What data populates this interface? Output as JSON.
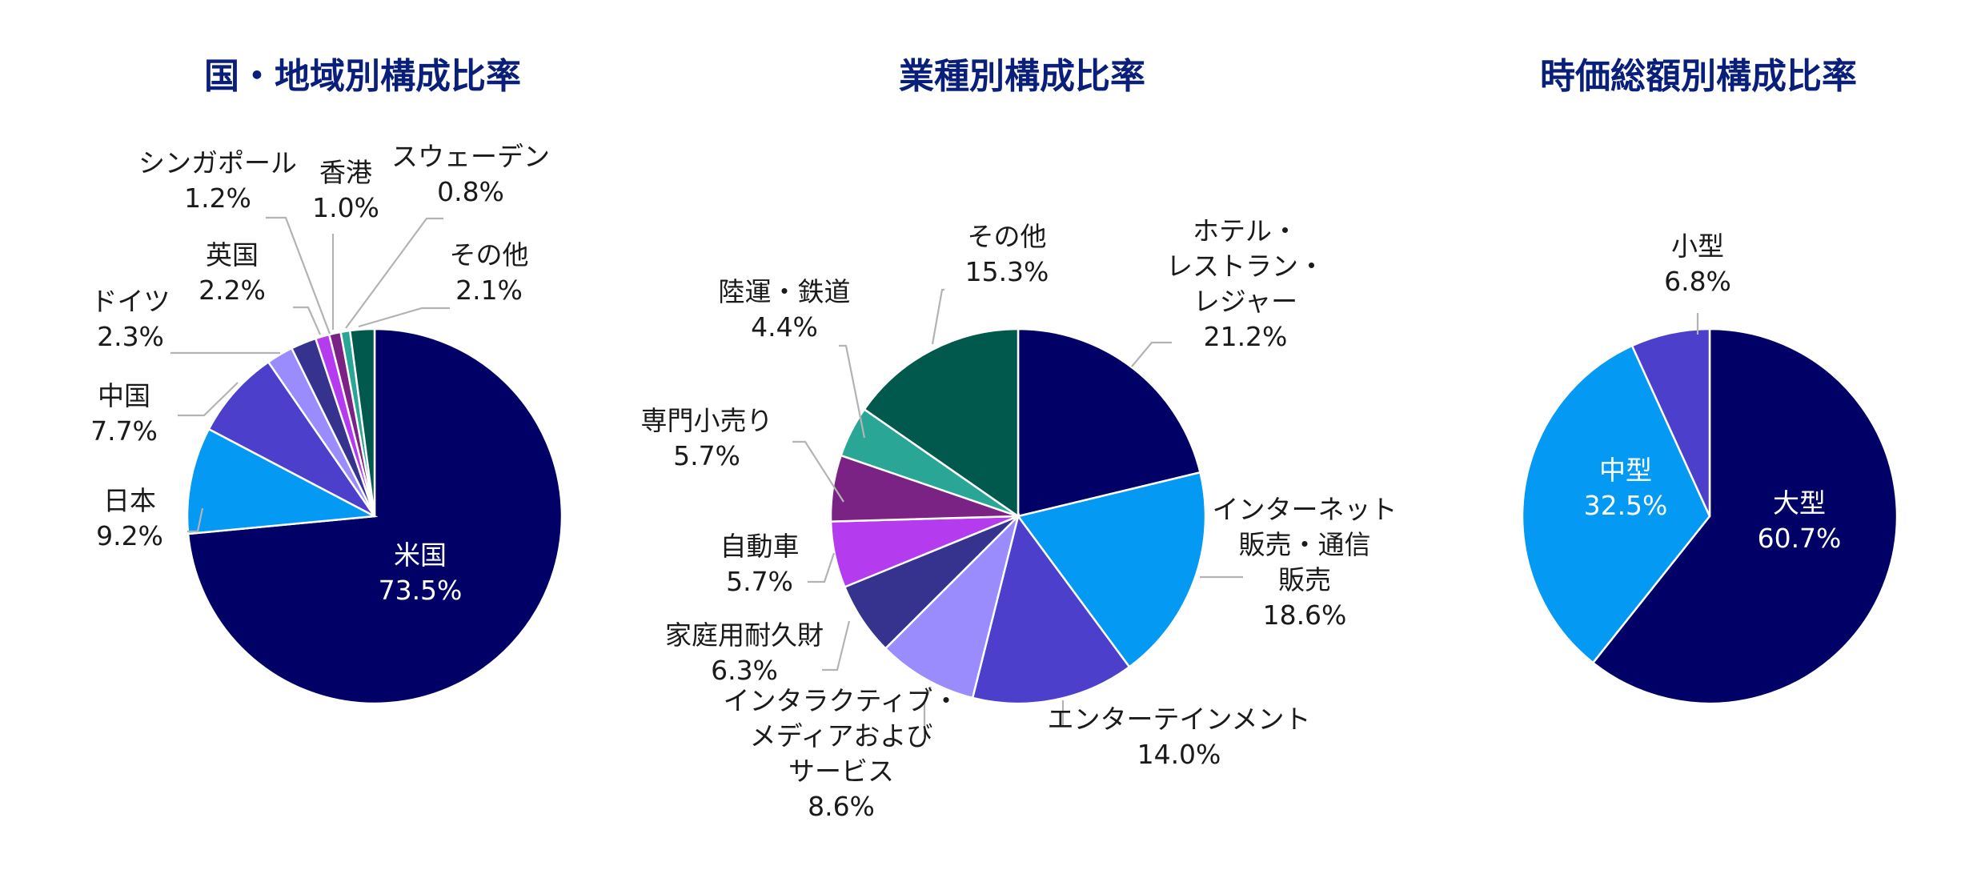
{
  "chart_data": [
    {
      "type": "pie",
      "title": "国・地域別構成比率",
      "slices": [
        {
          "label": "米国",
          "value": 73.5,
          "value_label": "73.5%",
          "color": "#000066",
          "label_inside": true
        },
        {
          "label": "日本",
          "value": 9.2,
          "value_label": "9.2%",
          "color": "#0499f2"
        },
        {
          "label": "中国",
          "value": 7.7,
          "value_label": "7.7%",
          "color": "#4b3fcc"
        },
        {
          "label": "ドイツ",
          "value": 2.3,
          "value_label": "2.3%",
          "color": "#9a8cfc"
        },
        {
          "label": "英国",
          "value": 2.2,
          "value_label": "2.2%",
          "color": "#36338f"
        },
        {
          "label": "シンガポール",
          "value": 1.2,
          "value_label": "1.2%",
          "color": "#b43bee"
        },
        {
          "label": "香港",
          "value": 1.0,
          "value_label": "1.0%",
          "color": "#7b2384"
        },
        {
          "label": "スウェーデン",
          "value": 0.8,
          "value_label": "0.8%",
          "color": "#2aa697"
        },
        {
          "label": "その他",
          "value": 2.1,
          "value_label": "2.1%",
          "color": "#00594c"
        }
      ]
    },
    {
      "type": "pie",
      "title": "業種別構成比率",
      "slices": [
        {
          "label": "ホテル・\nレストラン・\nレジャー",
          "value": 21.2,
          "value_label": "21.2%",
          "color": "#000066"
        },
        {
          "label": "インターネット\n販売・通信\n販売",
          "value": 18.6,
          "value_label": "18.6%",
          "color": "#0499f2"
        },
        {
          "label": "エンターテインメント",
          "value": 14.0,
          "value_label": "14.0%",
          "color": "#4b3fcc"
        },
        {
          "label": "インタラクティブ・\nメディアおよび\nサービス",
          "value": 8.6,
          "value_label": "8.6%",
          "color": "#9a8cfc"
        },
        {
          "label": "家庭用耐久財",
          "value": 6.3,
          "value_label": "6.3%",
          "color": "#36338f"
        },
        {
          "label": "自動車",
          "value": 5.7,
          "value_label": "5.7%",
          "color": "#b43bee"
        },
        {
          "label": "専門小売り",
          "value": 5.7,
          "value_label": "5.7%",
          "color": "#7b2384"
        },
        {
          "label": "陸運・鉄道",
          "value": 4.4,
          "value_label": "4.4%",
          "color": "#2aa697"
        },
        {
          "label": "その他",
          "value": 15.3,
          "value_label": "15.3%",
          "color": "#00594c"
        }
      ]
    },
    {
      "type": "pie",
      "title": "時価総額別構成比率",
      "slices": [
        {
          "label": "大型",
          "value": 60.7,
          "value_label": "60.7%",
          "color": "#000066",
          "label_inside": true
        },
        {
          "label": "中型",
          "value": 32.5,
          "value_label": "32.5%",
          "color": "#0499f2",
          "label_inside": true
        },
        {
          "label": "小型",
          "value": 6.8,
          "value_label": "6.8%",
          "color": "#4b3fcc"
        }
      ]
    }
  ]
}
